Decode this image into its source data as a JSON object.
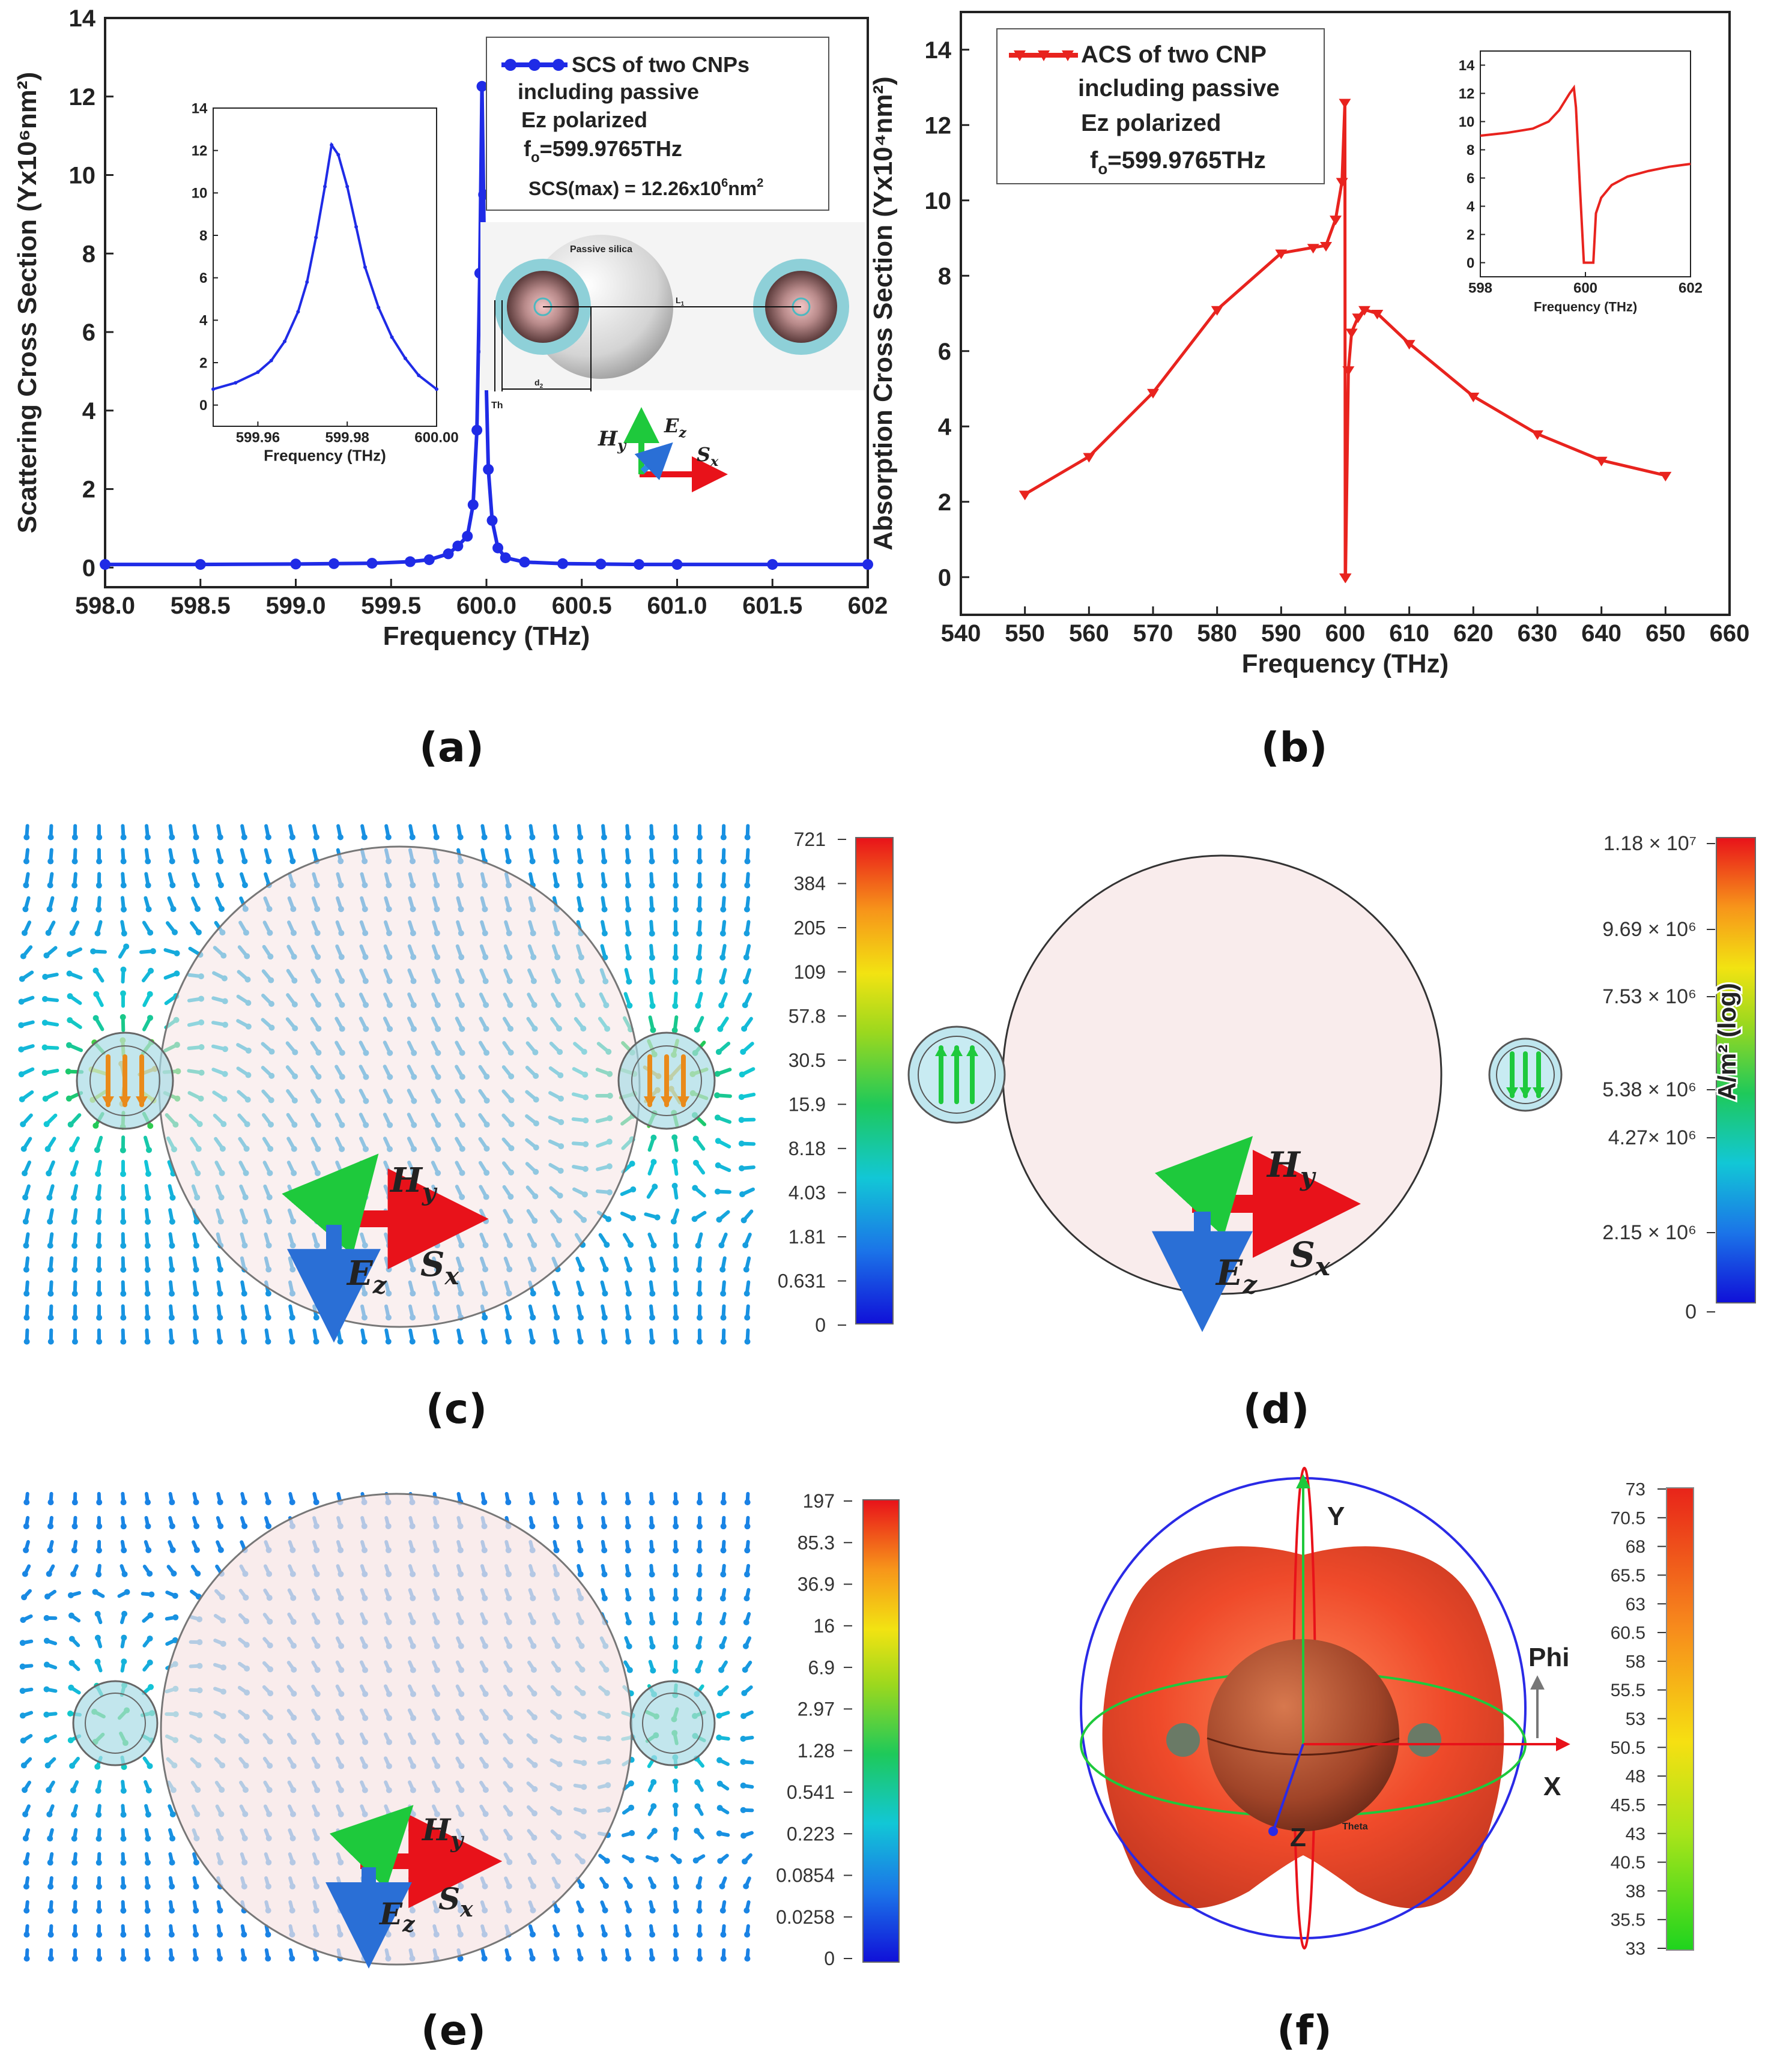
{
  "captions": {
    "a": "(a)",
    "b": "(b)",
    "c": "(c)",
    "d": "(d)",
    "e": "(e)",
    "f": "(f)"
  },
  "panel_a": {
    "legend": {
      "series": "SCS of two CNPs",
      "line2": "including passive",
      "line3": "Ez polarized",
      "line4_pre": "f",
      "line4_sub": "o",
      "line4_post": "=599.9765THz",
      "line5": "SCS(max) = 12.26x10",
      "line5_sup": "6",
      "line5_post": "nm",
      "line5_sup2": "2"
    },
    "schematic": {
      "sphere_label": "Passive silica",
      "l_label": "L",
      "l_sub": "1",
      "d_label": "d",
      "d_sub": "2",
      "th_label": "Th"
    },
    "axes_glyph": {
      "h": "H",
      "h_sub": "y",
      "e": "E",
      "e_sub": "z",
      "s": "S",
      "s_sub": "x"
    }
  },
  "panel_b": {
    "legend": {
      "series": "ACS of two CNP",
      "line2": "including passive",
      "line3": "Ez polarized",
      "line4_pre": "f",
      "line4_sub": "o",
      "line4_post": "=599.9765THz"
    }
  },
  "panel_c": {
    "colorbar": {
      "ticks": [
        "721",
        "384",
        "205",
        "109",
        "57.8",
        "30.5",
        "15.9",
        "8.18",
        "4.03",
        "1.81",
        "0.631",
        "0"
      ]
    },
    "axes_glyph": {
      "h": "H",
      "h_sub": "y",
      "e": "E",
      "e_sub": "z",
      "s": "S",
      "s_sub": "x"
    }
  },
  "panel_d": {
    "colorbar": {
      "ticks": [
        "1.18 × 10⁷",
        "9.69 × 10⁶",
        "7.53 × 10⁶",
        "5.38 × 10⁶",
        "4.27× 10⁶",
        "2.15 × 10⁶",
        "0"
      ],
      "unit": "A/m² (log)"
    },
    "axes_glyph": {
      "h": "H",
      "h_sub": "y",
      "e": "E",
      "e_sub": "z",
      "s": "S",
      "s_sub": "x"
    }
  },
  "panel_e": {
    "colorbar": {
      "ticks": [
        "197",
        "85.3",
        "36.9",
        "16",
        "6.9",
        "2.97",
        "1.28",
        "0.541",
        "0.223",
        "0.0854",
        "0.0258",
        "0"
      ]
    },
    "axes_glyph": {
      "h": "H",
      "h_sub": "y",
      "e": "E",
      "e_sub": "z",
      "s": "S",
      "s_sub": "x"
    }
  },
  "panel_f": {
    "axis_labels": {
      "y": "Y",
      "x": "X",
      "z": "Z",
      "phi": "Phi",
      "theta": "Theta"
    },
    "colorbar": {
      "ticks": [
        "73",
        "70.5",
        "68",
        "65.5",
        "63",
        "60.5",
        "58",
        "55.5",
        "53",
        "50.5",
        "48",
        "45.5",
        "43",
        "40.5",
        "38",
        "35.5",
        "33"
      ]
    }
  },
  "chart_data": [
    {
      "id": "a-main",
      "type": "scatter",
      "title": "",
      "xlabel": "Frequency (THz)",
      "ylabel": "Scattering Cross Section (Yx10⁶nm²)",
      "xlim": [
        598.0,
        602.0
      ],
      "ylim": [
        -0.5,
        14
      ],
      "xticks": [
        598.0,
        598.5,
        599.0,
        599.5,
        600.0,
        600.5,
        601.0,
        601.5,
        602.0
      ],
      "xtick_labels": [
        "598.0",
        "598.5",
        "599.0",
        "599.5",
        "600.0",
        "600.5",
        "601.0",
        "601.5",
        "602"
      ],
      "yticks": [
        0,
        2,
        4,
        6,
        8,
        10,
        12,
        14
      ],
      "series": [
        {
          "name": "SCS of two CNPs",
          "color": "#1f2be6",
          "x": [
            598.0,
            598.5,
            599.0,
            599.2,
            599.4,
            599.6,
            599.7,
            599.8,
            599.85,
            599.9,
            599.93,
            599.95,
            599.965,
            599.9765,
            599.985,
            599.995,
            600.01,
            600.03,
            600.06,
            600.1,
            600.2,
            600.4,
            600.6,
            600.8,
            601.0,
            601.5,
            602.0
          ],
          "y": [
            0.08,
            0.08,
            0.09,
            0.1,
            0.11,
            0.15,
            0.2,
            0.35,
            0.55,
            0.8,
            1.6,
            3.5,
            7.5,
            12.26,
            9.5,
            5.5,
            2.5,
            1.2,
            0.5,
            0.25,
            0.14,
            0.1,
            0.09,
            0.08,
            0.08,
            0.08,
            0.08
          ]
        }
      ]
    },
    {
      "id": "a-inset",
      "type": "scatter",
      "xlabel": "Frequency (THz)",
      "ylabel": "",
      "xlim": [
        599.95,
        600.0
      ],
      "ylim": [
        -1,
        14
      ],
      "xticks": [
        599.96,
        599.98,
        600.0
      ],
      "xtick_labels": [
        "599.96",
        "599.98",
        "600.00"
      ],
      "yticks": [
        0,
        2,
        4,
        6,
        8,
        10,
        12,
        14
      ],
      "series": [
        {
          "name": "inset",
          "color": "#1f2be6",
          "x": [
            599.95,
            599.955,
            599.96,
            599.963,
            599.966,
            599.969,
            599.971,
            599.973,
            599.975,
            599.9765,
            599.978,
            599.98,
            599.982,
            599.984,
            599.987,
            599.99,
            599.993,
            599.996,
            600.0
          ],
          "y": [
            0.75,
            1.05,
            1.55,
            2.1,
            3.0,
            4.4,
            5.8,
            7.9,
            10.3,
            12.26,
            11.8,
            10.3,
            8.4,
            6.5,
            4.6,
            3.2,
            2.2,
            1.4,
            0.75
          ]
        }
      ]
    },
    {
      "id": "b-main",
      "type": "line",
      "xlabel": "Frequency (THz)",
      "ylabel": "Absorption Cross Section (Yx10⁴nm²)",
      "xlim": [
        540,
        660
      ],
      "ylim": [
        -1,
        15
      ],
      "xticks": [
        540,
        550,
        560,
        570,
        580,
        590,
        600,
        610,
        620,
        630,
        640,
        650,
        660
      ],
      "xtick_labels": [
        "540",
        "550",
        "560",
        "570",
        "580",
        "590",
        "600",
        "610",
        "620",
        "630",
        "640",
        "650",
        "660"
      ],
      "yticks": [
        0,
        2,
        4,
        6,
        8,
        10,
        12,
        14
      ],
      "series": [
        {
          "name": "ACS of two CNP",
          "color": "#e8231e",
          "x": [
            550,
            560,
            570,
            580,
            590,
            595,
            597,
            598.5,
            599.5,
            599.95,
            600.0,
            600.05,
            600.5,
            601,
            602,
            603,
            605,
            610,
            620,
            630,
            640,
            650
          ],
          "y": [
            2.2,
            3.2,
            4.9,
            7.1,
            8.6,
            8.75,
            8.8,
            9.5,
            10.5,
            12.6,
            0,
            0,
            5.5,
            6.5,
            6.9,
            7.1,
            7.0,
            6.2,
            4.8,
            3.8,
            3.1,
            2.7
          ]
        }
      ]
    },
    {
      "id": "b-inset",
      "type": "line",
      "xlabel": "Frequency (THz)",
      "ylabel": "",
      "xlim": [
        598,
        602
      ],
      "ylim": [
        -1,
        15
      ],
      "xticks": [
        598,
        600,
        602
      ],
      "xtick_labels": [
        "598",
        "600",
        "602"
      ],
      "yticks": [
        0,
        2,
        4,
        6,
        8,
        10,
        12,
        14
      ],
      "series": [
        {
          "name": "inset",
          "color": "#e8231e",
          "x": [
            598.0,
            598.5,
            599.0,
            599.3,
            599.5,
            599.7,
            599.78,
            599.82,
            599.9,
            599.97,
            600.0,
            600.15,
            600.2,
            600.3,
            600.5,
            600.8,
            601.2,
            601.6,
            602.0
          ],
          "y": [
            9.0,
            9.2,
            9.5,
            10.0,
            10.8,
            12.0,
            12.4,
            11.0,
            5.0,
            0,
            0,
            0,
            3.5,
            4.6,
            5.5,
            6.1,
            6.5,
            6.8,
            7.0
          ]
        }
      ]
    }
  ]
}
